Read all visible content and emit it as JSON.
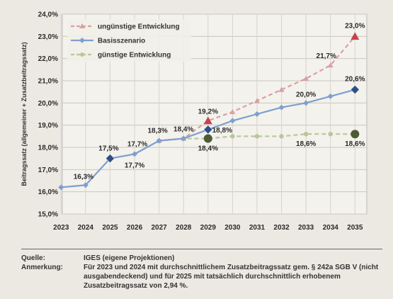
{
  "chart_data": {
    "type": "line",
    "title": "",
    "xlabel": "",
    "ylabel": "Beitragssatz (allgemeiner + Zusatzbeitragssatz)",
    "x": [
      "2023",
      "2024",
      "2025",
      "2026",
      "2027",
      "2028",
      "2029",
      "2030",
      "2031",
      "2032",
      "2033",
      "2034",
      "2035"
    ],
    "ylim": [
      15.0,
      24.0
    ],
    "yticks": [
      "15,0%",
      "16,0%",
      "17,0%",
      "18,0%",
      "19,0%",
      "20,0%",
      "21,0%",
      "22,0%",
      "23,0%",
      "24,0%"
    ],
    "grid": true,
    "legend_position": "top-left",
    "series": [
      {
        "name": "ungünstige Entwicklung",
        "color": "#d9a0a6",
        "marker_color": "#c8424d",
        "values": [
          null,
          null,
          null,
          null,
          18.3,
          18.4,
          19.2,
          19.6,
          20.1,
          20.6,
          21.1,
          21.7,
          23.0
        ],
        "labels": {
          "6": "19,2%",
          "11": "21,7%",
          "12": "23,0%"
        }
      },
      {
        "name": "Basisszenario",
        "color": "#7e9fd0",
        "marker_color": "#2f4f86",
        "values": [
          16.2,
          16.3,
          17.5,
          17.7,
          18.3,
          18.4,
          18.8,
          19.2,
          19.5,
          19.8,
          20.0,
          20.3,
          20.6
        ],
        "labels": {
          "1": "16,3%",
          "2": "17,5%",
          "3": "17,7%",
          "4": "18,3%",
          "5": "18,4%",
          "6": "18,8%",
          "10": "20,0%",
          "12": "20,6%"
        }
      },
      {
        "name": "günstige Entwicklung",
        "color": "#b8c79a",
        "marker_color": "#4e5a36",
        "values": [
          null,
          null,
          null,
          null,
          18.3,
          18.4,
          18.4,
          18.5,
          18.5,
          18.5,
          18.6,
          18.6,
          18.6
        ],
        "labels": {
          "6": "18,4%",
          "10": "18,6%",
          "12": "18,6%"
        }
      }
    ],
    "extra_labels": [
      {
        "x_index": 3,
        "series": 1,
        "text": "17,7%",
        "position": "below"
      }
    ]
  },
  "notes": [
    {
      "key": "Quelle:",
      "value": "IGES (eigene Projektionen)"
    },
    {
      "key": "Anmerkung:",
      "value": "Für 2023 und 2024 mit durchschnittlichem Zusatzbeitragssatz gem. § 242a SGB V (nicht ausgabendeckend) und für 2025 mit tatsächlich durchschnittlich erhobenem Zusatzbeitragssatz von 2,94 %."
    }
  ]
}
